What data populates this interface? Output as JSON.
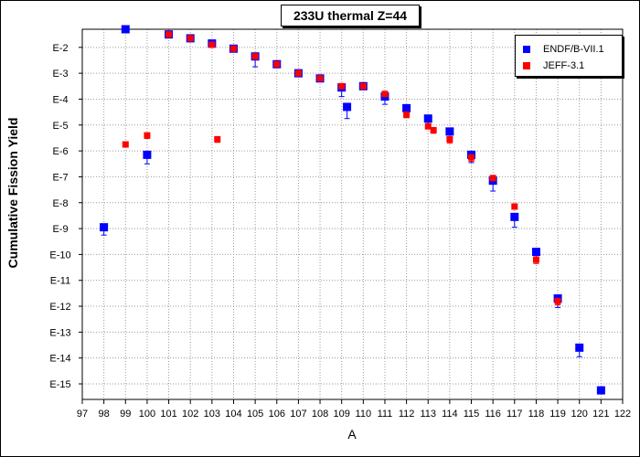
{
  "chart_data": {
    "type": "scatter",
    "title": "233U thermal Z=44",
    "xlabel": "A",
    "ylabel": "Cumulative Fission Yield",
    "x_range": [
      97,
      122
    ],
    "y_scale": "log",
    "y_range_exponent": [
      -15.6,
      -1.3
    ],
    "xticks": [
      "97",
      "98",
      "99",
      "100",
      "101",
      "102",
      "103",
      "104",
      "105",
      "106",
      "107",
      "108",
      "109",
      "110",
      "111",
      "112",
      "113",
      "114",
      "115",
      "116",
      "117",
      "118",
      "119",
      "120",
      "121",
      "122"
    ],
    "yticks": [
      {
        "label": "E-2",
        "exp": -2
      },
      {
        "label": "E-3",
        "exp": -3
      },
      {
        "label": "E-4",
        "exp": -4
      },
      {
        "label": "E-5",
        "exp": -5
      },
      {
        "label": "E-6",
        "exp": -6
      },
      {
        "label": "E-7",
        "exp": -7
      },
      {
        "label": "E-8",
        "exp": -8
      },
      {
        "label": "E-9",
        "exp": -9
      },
      {
        "label": "E-10",
        "exp": -10
      },
      {
        "label": "E-11",
        "exp": -11
      },
      {
        "label": "E-12",
        "exp": -12
      },
      {
        "label": "E-13",
        "exp": -13
      },
      {
        "label": "E-14",
        "exp": -14
      },
      {
        "label": "E-15",
        "exp": -15
      }
    ],
    "grid": true,
    "legend_position": "top-right",
    "series": [
      {
        "name": "ENDF/B-VII.1",
        "color": "#0000ff",
        "marker": "square",
        "points": [
          {
            "x": 98,
            "log_y": -8.95,
            "log_err": 0.3
          },
          {
            "x": 99,
            "log_y": -1.3,
            "log_err": 0
          },
          {
            "x": 100,
            "log_y": -6.15,
            "log_err": 0.35
          },
          {
            "x": 101,
            "log_y": -1.5,
            "log_err": 0
          },
          {
            "x": 102,
            "log_y": -1.65,
            "log_err": 0
          },
          {
            "x": 103,
            "log_y": -1.85,
            "log_err": 0
          },
          {
            "x": 104,
            "log_y": -2.05,
            "log_err": 0
          },
          {
            "x": 105,
            "log_y": -2.35,
            "log_err": 0.4
          },
          {
            "x": 106,
            "log_y": -2.65,
            "log_err": 0
          },
          {
            "x": 107,
            "log_y": -3.0,
            "log_err": 0
          },
          {
            "x": 108,
            "log_y": -3.2,
            "log_err": 0
          },
          {
            "x": 109,
            "log_y": -3.55,
            "log_err": 0.35
          },
          {
            "x": 109.25,
            "log_y": -4.3,
            "log_err": 0.45
          },
          {
            "x": 110,
            "log_y": -3.5,
            "log_err": 0
          },
          {
            "x": 111,
            "log_y": -3.9,
            "log_err": 0.3
          },
          {
            "x": 112,
            "log_y": -4.35,
            "log_err": 0.3
          },
          {
            "x": 113,
            "log_y": -4.75,
            "log_err": 0.2
          },
          {
            "x": 114,
            "log_y": -5.25,
            "log_err": 0.3
          },
          {
            "x": 115,
            "log_y": -6.15,
            "log_err": 0.3
          },
          {
            "x": 116,
            "log_y": -7.15,
            "log_err": 0.4
          },
          {
            "x": 117,
            "log_y": -8.55,
            "log_err": 0.4
          },
          {
            "x": 118,
            "log_y": -9.9,
            "log_err": 0.25
          },
          {
            "x": 119,
            "log_y": -11.7,
            "log_err": 0.35
          },
          {
            "x": 120,
            "log_y": -13.6,
            "log_err": 0.35
          },
          {
            "x": 121,
            "log_y": -15.25,
            "log_err": 0
          }
        ]
      },
      {
        "name": "JEFF-3.1",
        "color": "#ff0000",
        "marker": "square",
        "points": [
          {
            "x": 99,
            "log_y": -5.75,
            "log_err": 0
          },
          {
            "x": 100,
            "log_y": -5.4,
            "log_err": 0.12
          },
          {
            "x": 101,
            "log_y": -1.5,
            "log_err": 0
          },
          {
            "x": 102,
            "log_y": -1.65,
            "log_err": 0
          },
          {
            "x": 103,
            "log_y": -1.9,
            "log_err": 0
          },
          {
            "x": 103.25,
            "log_y": -5.55,
            "log_err": 0.12
          },
          {
            "x": 104,
            "log_y": -2.05,
            "log_err": 0
          },
          {
            "x": 105,
            "log_y": -2.35,
            "log_err": 0
          },
          {
            "x": 106,
            "log_y": -2.65,
            "log_err": 0
          },
          {
            "x": 107,
            "log_y": -3.0,
            "log_err": 0
          },
          {
            "x": 108,
            "log_y": -3.2,
            "log_err": 0
          },
          {
            "x": 109,
            "log_y": -3.5,
            "log_err": 0
          },
          {
            "x": 110,
            "log_y": -3.5,
            "log_err": 0
          },
          {
            "x": 111,
            "log_y": -3.8,
            "log_err": 0
          },
          {
            "x": 112,
            "log_y": -4.6,
            "log_err": 0.12
          },
          {
            "x": 113,
            "log_y": -5.05,
            "log_err": 0
          },
          {
            "x": 113.25,
            "log_y": -5.2,
            "log_err": 0.12
          },
          {
            "x": 114,
            "log_y": -5.55,
            "log_err": 0.15
          },
          {
            "x": 115,
            "log_y": -6.25,
            "log_err": 0.15
          },
          {
            "x": 116,
            "log_y": -7.05,
            "log_err": 0
          },
          {
            "x": 117,
            "log_y": -8.15,
            "log_err": 0
          },
          {
            "x": 118,
            "log_y": -10.2,
            "log_err": 0.15
          },
          {
            "x": 119,
            "log_y": -11.8,
            "log_err": 0.15
          }
        ]
      }
    ]
  }
}
